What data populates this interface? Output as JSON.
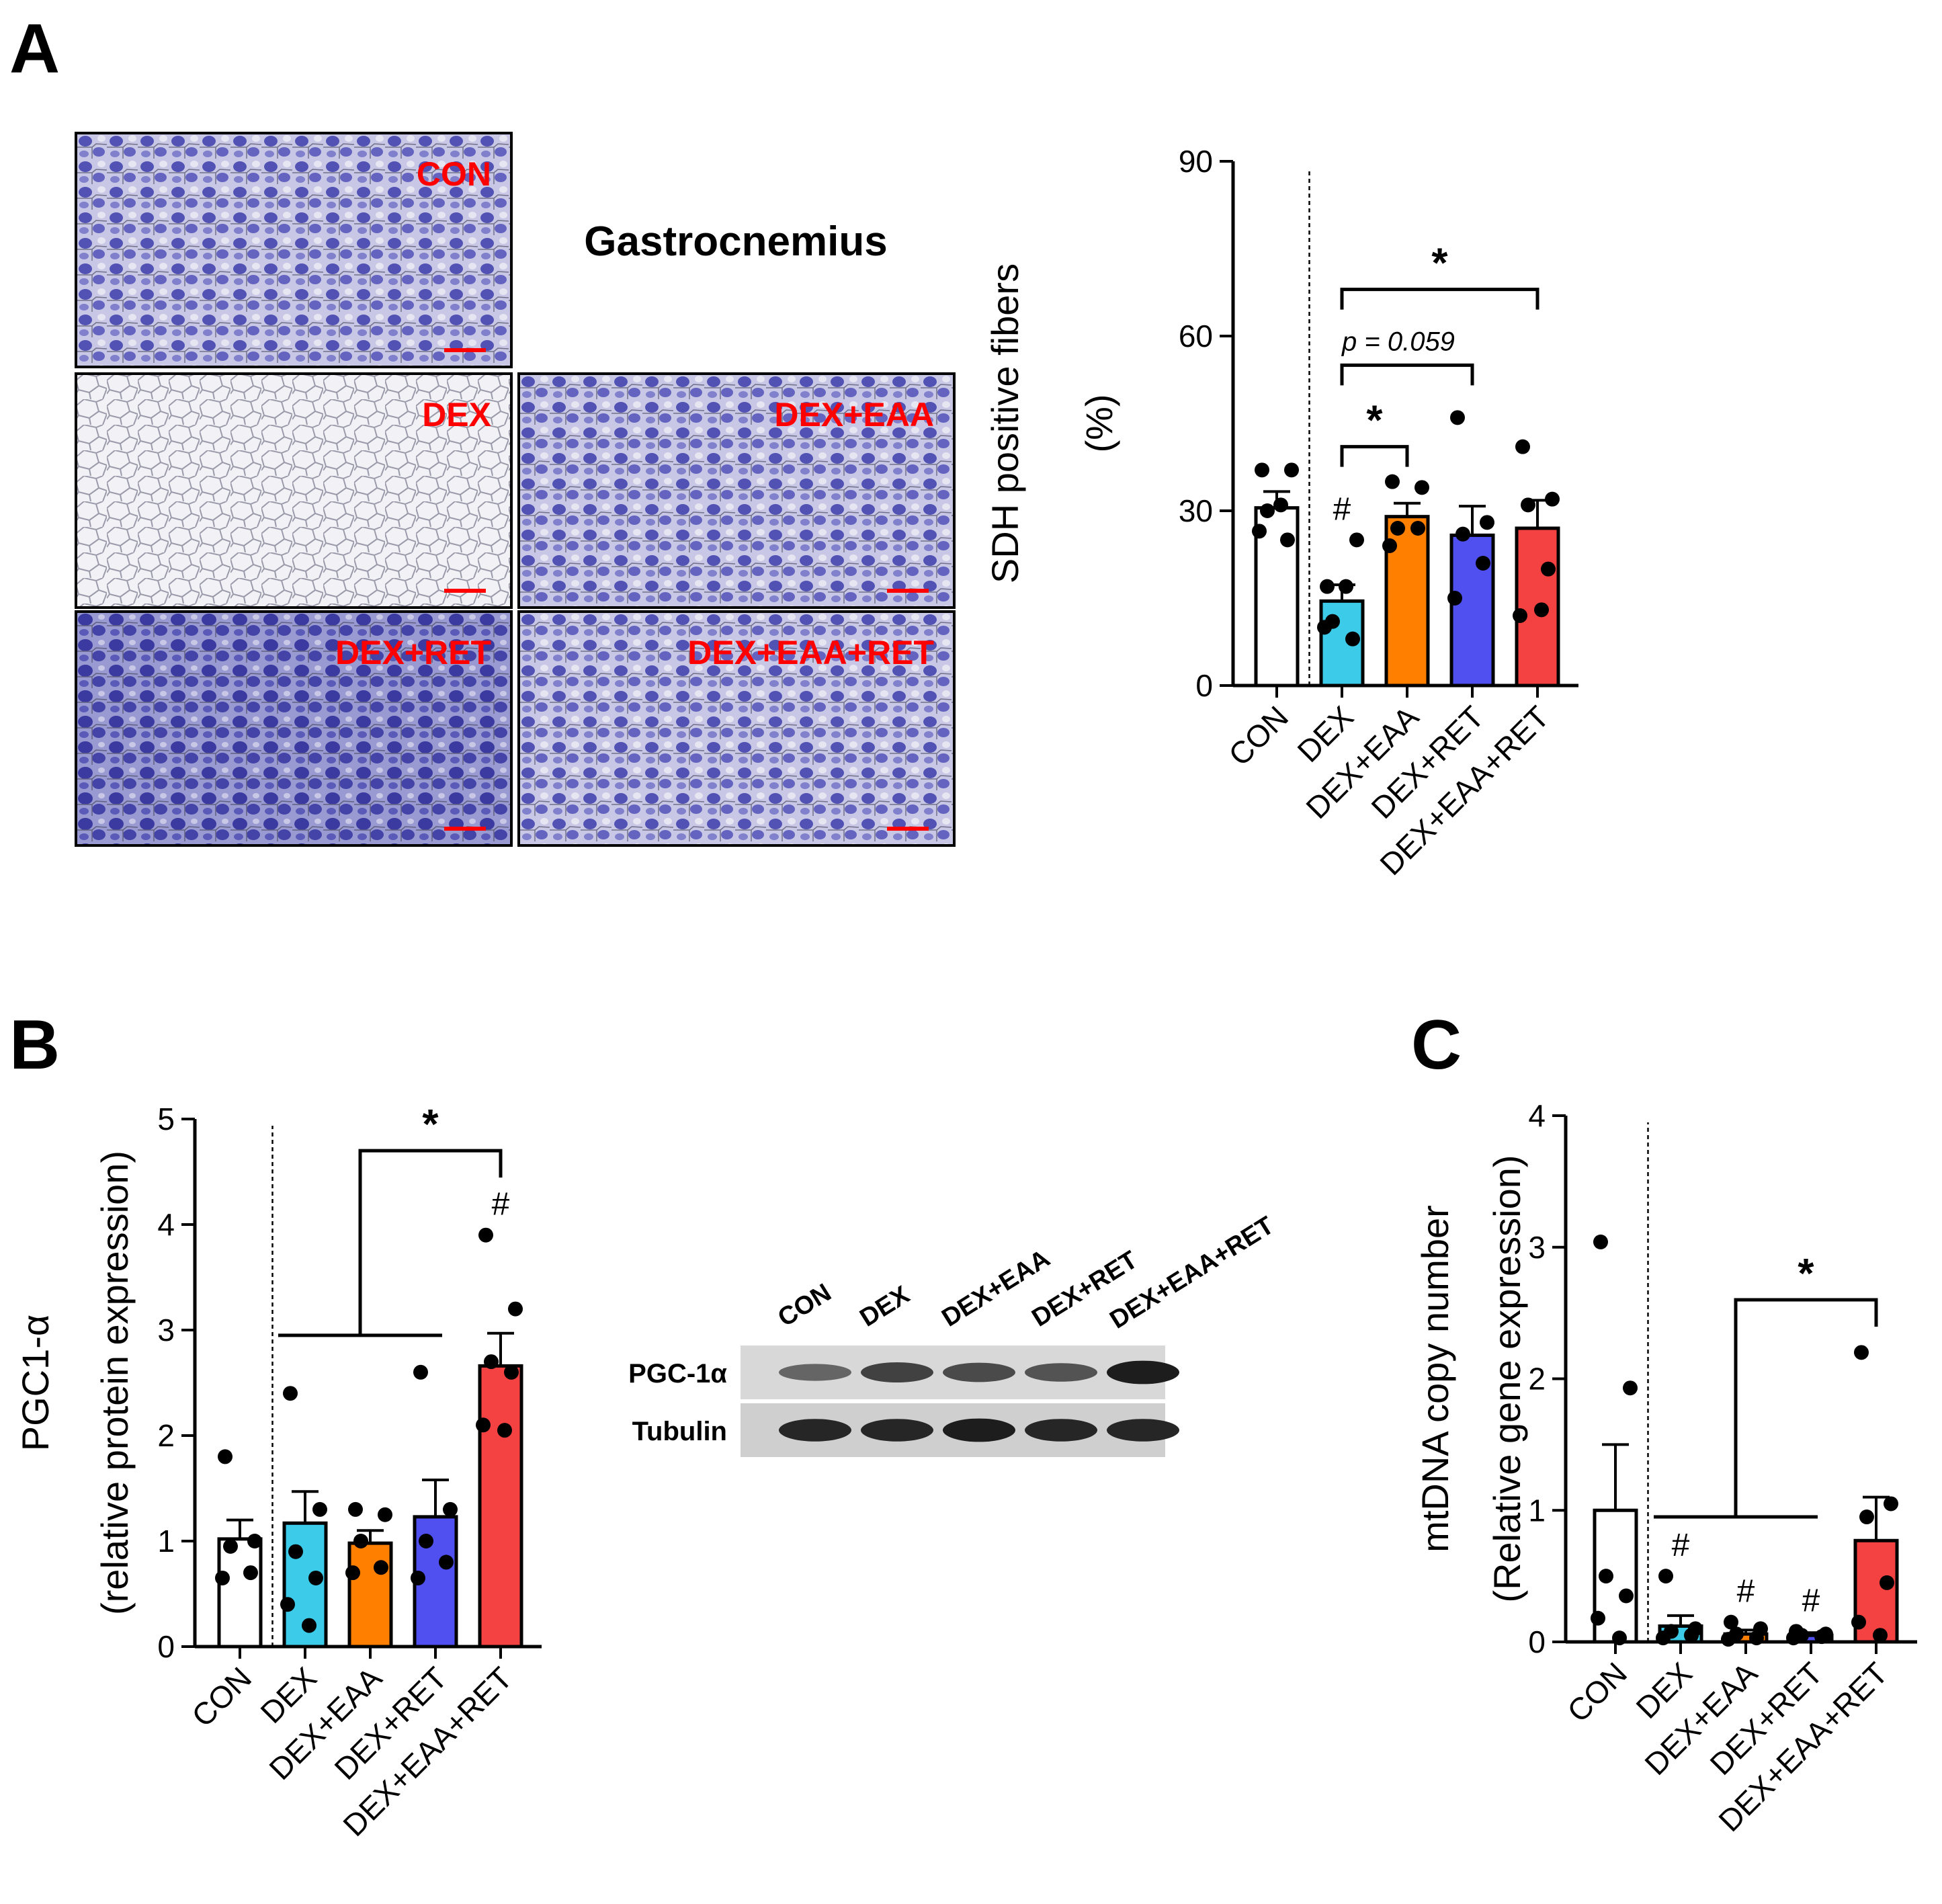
{
  "panels": {
    "A": "A",
    "B": "B",
    "C": "C"
  },
  "micrographs": {
    "title": "Gastrocnemius",
    "tiles": [
      {
        "label": "CON",
        "stain": "medium"
      },
      {
        "label": "DEX",
        "stain": "light"
      },
      {
        "label": "DEX+EAA",
        "stain": "medium"
      },
      {
        "label": "DEX+RET",
        "stain": "dark"
      },
      {
        "label": "DEX+EAA+RET",
        "stain": "medium"
      }
    ],
    "scale_bar_color": "#ff0000",
    "stain_color": "#4a4aa8"
  },
  "western_blot": {
    "lanes": [
      "CON",
      "DEX",
      "DEX+EAA",
      "DEX+RET",
      "DEX+EAA+RET"
    ],
    "rows": [
      {
        "label": "PGC-1α",
        "band_intensity": [
          0.55,
          0.75,
          0.7,
          0.65,
          0.95
        ]
      },
      {
        "label": "Tubulin",
        "band_intensity": [
          0.9,
          0.9,
          0.95,
          0.9,
          0.9
        ]
      }
    ]
  },
  "colors": {
    "CON": "#ffffff",
    "DEX": "#3ccbe8",
    "DEX+EAA": "#ff8000",
    "DEX+RET": "#5050f0",
    "DEX+EAA+RET": "#f44242"
  },
  "chart_data": [
    {
      "id": "A",
      "type": "bar",
      "categories": [
        "CON",
        "DEX",
        "DEX+EAA",
        "DEX+RET",
        "DEX+EAA+RET"
      ],
      "values": [
        30.5,
        14.5,
        29,
        25.8,
        27
      ],
      "errors": [
        2.8,
        2.8,
        2.3,
        5,
        4.8
      ],
      "points": [
        [
          37,
          37,
          30,
          25,
          26.5,
          31
        ],
        [
          17,
          25,
          11,
          8,
          10,
          17
        ],
        [
          35,
          34,
          27,
          27,
          24
        ],
        [
          46,
          28,
          26,
          21,
          15
        ],
        [
          41,
          32,
          31,
          20,
          12,
          13
        ]
      ],
      "hash_marks": [
        "",
        "#",
        "",
        "",
        ""
      ],
      "ylabel": "SDH positive fibers\n(%)",
      "ylabel_lines": [
        "SDH positive fibers",
        "(%)"
      ],
      "ylim": [
        0,
        90
      ],
      "yticks": [
        0,
        30,
        60,
        90
      ],
      "annotations": [
        {
          "from": 1,
          "to": 2,
          "level": 41,
          "text": "*"
        },
        {
          "from": 1,
          "to": 3,
          "level": 55,
          "text": "p = 0.059"
        },
        {
          "from": 1,
          "to": 4,
          "level": 68,
          "text": "*"
        }
      ],
      "divider_after_index": 0
    },
    {
      "id": "B",
      "type": "bar",
      "categories": [
        "CON",
        "DEX",
        "DEX+EAA",
        "DEX+RET",
        "DEX+EAA+RET"
      ],
      "values": [
        1.02,
        1.17,
        0.98,
        1.23,
        2.66
      ],
      "errors": [
        0.18,
        0.3,
        0.12,
        0.35,
        0.31
      ],
      "points": [
        [
          1.8,
          1.0,
          0.95,
          0.7,
          0.65
        ],
        [
          2.4,
          1.3,
          0.9,
          0.65,
          0.4,
          0.2
        ],
        [
          1.3,
          1.25,
          1.0,
          0.75,
          0.7
        ],
        [
          2.6,
          1.3,
          1.0,
          0.8,
          0.65
        ],
        [
          3.9,
          3.2,
          2.7,
          2.6,
          2.1,
          2.05
        ]
      ],
      "hash_marks": [
        "",
        "",
        "",
        "",
        "#"
      ],
      "ylabel": "PGC1-α\n(relative protein expression)",
      "ylabel_lines": [
        "PGC1-α",
        "(relative protein expression)"
      ],
      "ylim": [
        0,
        5
      ],
      "yticks": [
        0,
        1,
        2,
        3,
        4,
        5
      ],
      "group_bracket": {
        "from": 1,
        "to": 3,
        "level": 2.95,
        "target": 4,
        "top": 4.7,
        "text": "*"
      },
      "divider_after_index": 0
    },
    {
      "id": "C",
      "type": "bar",
      "categories": [
        "CON",
        "DEX",
        "DEX+EAA",
        "DEX+RET",
        "DEX+EAA+RET"
      ],
      "values": [
        1.0,
        0.12,
        0.06,
        0.05,
        0.77
      ],
      "errors": [
        0.5,
        0.08,
        0.03,
        0.02,
        0.33
      ],
      "points": [
        [
          3.04,
          1.93,
          0.5,
          0.35,
          0.18,
          0.03
        ],
        [
          0.5,
          0.1,
          0.08,
          0.05,
          0.03
        ],
        [
          0.15,
          0.1,
          0.06,
          0.03,
          0.02
        ],
        [
          0.08,
          0.06,
          0.05,
          0.04,
          0.03
        ],
        [
          2.2,
          1.05,
          0.95,
          0.45,
          0.15,
          0.05
        ]
      ],
      "hash_marks": [
        "",
        "#",
        "#",
        "#",
        ""
      ],
      "ylabel": "mtDNA copy number\n(Relative gene expression)",
      "ylabel_lines": [
        "mtDNA copy number",
        "(Relative gene expression)"
      ],
      "ylim": [
        0,
        4
      ],
      "yticks": [
        0,
        1,
        2,
        3,
        4
      ],
      "group_bracket": {
        "from": 1,
        "to": 3,
        "level": 0.95,
        "target": 4,
        "top": 2.6,
        "text": "*"
      },
      "divider_after_index": 0
    }
  ]
}
